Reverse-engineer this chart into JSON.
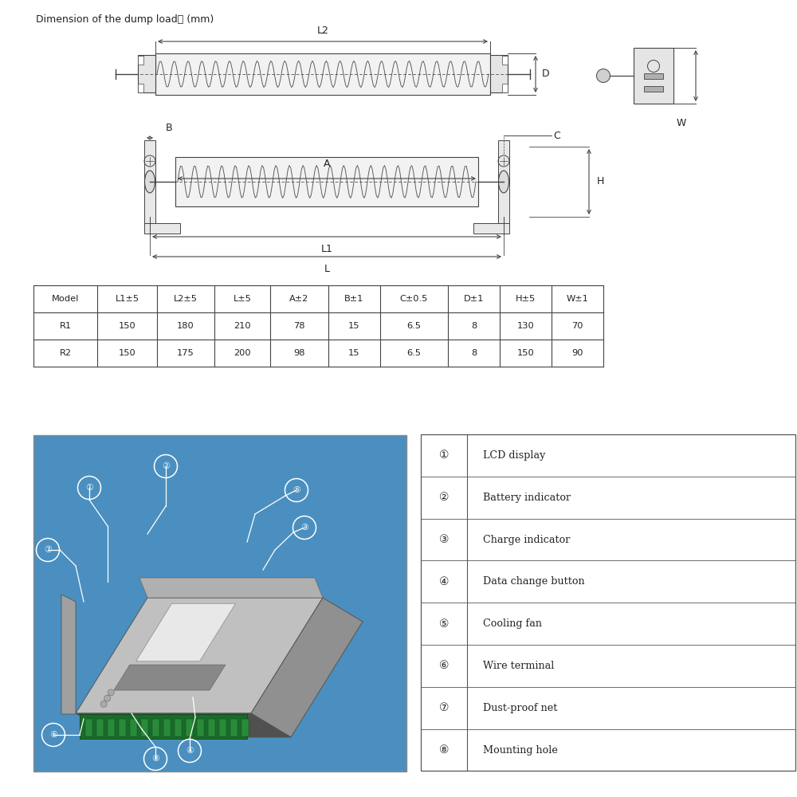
{
  "bg_color": "#f8f8f8",
  "title_text": "Dimension of the dump load：  (mm)",
  "table_headers": [
    "Model",
    "L1±5",
    "L2±5",
    "L±5",
    "A±2",
    "B±1",
    "C±0.5",
    "D±1",
    "H±5",
    "W±1"
  ],
  "table_rows": [
    [
      "R1",
      "150",
      "180",
      "210",
      "78",
      "15",
      "6.5",
      "8",
      "130",
      "70"
    ],
    [
      "R2",
      "150",
      "175",
      "200",
      "98",
      "15",
      "6.5",
      "8",
      "150",
      "90"
    ]
  ],
  "legend_items": [
    [
      "①",
      "LCD display"
    ],
    [
      "②",
      "Battery indicator"
    ],
    [
      "③",
      "Charge indicator"
    ],
    [
      "④",
      "Data change button"
    ],
    [
      "⑤",
      "Cooling fan"
    ],
    [
      "⑥",
      "Wire terminal"
    ],
    [
      "⑦",
      "Dust-proof net"
    ],
    [
      "⑧",
      "Mounting hole"
    ]
  ],
  "blue_box_color": "#4a8fbf",
  "table_line_color": "#444444",
  "dim_line_color": "#444444",
  "text_color": "#222222"
}
